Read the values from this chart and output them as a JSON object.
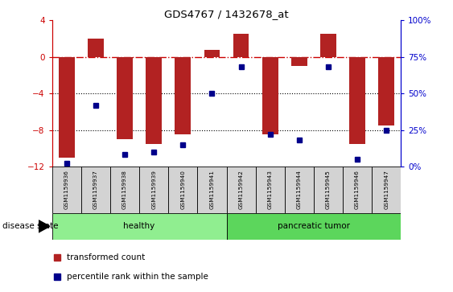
{
  "title": "GDS4767 / 1432678_at",
  "samples": [
    "GSM1159936",
    "GSM1159937",
    "GSM1159938",
    "GSM1159939",
    "GSM1159940",
    "GSM1159941",
    "GSM1159942",
    "GSM1159943",
    "GSM1159944",
    "GSM1159945",
    "GSM1159946",
    "GSM1159947"
  ],
  "transformed_count": [
    -11.0,
    2.0,
    -9.0,
    -9.5,
    -8.5,
    0.8,
    2.5,
    -8.5,
    -1.0,
    2.5,
    -9.5,
    -7.5
  ],
  "percentile_rank": [
    2,
    42,
    8,
    10,
    15,
    50,
    68,
    22,
    18,
    68,
    5,
    25
  ],
  "bar_color": "#b22222",
  "dot_color": "#00008b",
  "healthy_count": 6,
  "pancreatic_count": 6,
  "ylim_left": [
    -12,
    4
  ],
  "ylim_right": [
    0,
    100
  ],
  "yticks_left": [
    -12,
    -8,
    -4,
    0,
    4
  ],
  "yticks_right": [
    0,
    25,
    50,
    75,
    100
  ],
  "background_color": "#ffffff",
  "plot_bg": "#ffffff",
  "label_tc": "transformed count",
  "label_pr": "percentile rank within the sample",
  "disease_label": "disease state",
  "healthy_label": "healthy",
  "tumor_label": "pancreatic tumor",
  "healthy_color": "#90ee90",
  "tumor_color": "#5cd65c",
  "bar_alpha": 1.0,
  "left_color": "#cc0000",
  "right_color": "#0000cc"
}
